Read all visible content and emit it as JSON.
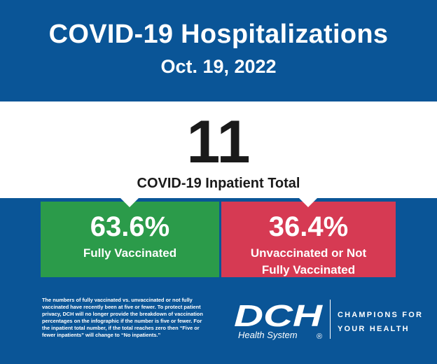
{
  "header": {
    "title": "COVID-19 Hospitalizations",
    "date": "Oct. 19, 2022"
  },
  "total": {
    "value": "11",
    "label": "COVID-19 Inpatient Total"
  },
  "breakdown": {
    "vaccinated": {
      "percent": "63.6%",
      "label": "Fully Vaccinated",
      "color": "#2b9b4a"
    },
    "unvaccinated": {
      "percent": "36.4%",
      "label_line1": "Unvaccinated or Not",
      "label_line2": "Fully Vaccinated",
      "color": "#d63a53"
    }
  },
  "footnote": "The numbers of fully vaccinated vs. unvaccinated or not fully vaccinated have recently been at five or fewer. To protect patient privacy, DCH will no longer provide the breakdown of vaccination percentages on the infographic if the number is five or fewer. For the inpatient total number, if the total reaches zero then “Five or fewer inpatients” will change to “No inpatients.”",
  "logo": {
    "mark": "DCH",
    "sub": "Health System",
    "registered": "®"
  },
  "tagline": {
    "line1": "CHAMPIONS FOR",
    "line2": "YOUR HEALTH"
  },
  "colors": {
    "background": "#0a5597",
    "band": "#ffffff"
  }
}
